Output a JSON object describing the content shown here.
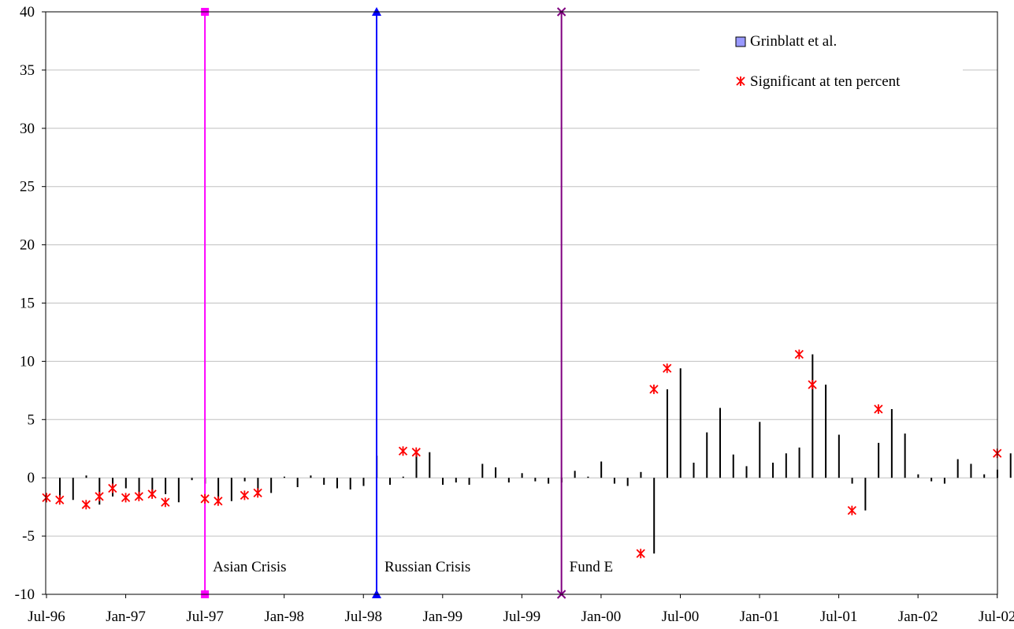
{
  "chart_data": {
    "type": "bar",
    "title": "",
    "xlabel": "",
    "ylabel": "",
    "ylim": [
      -10,
      40
    ],
    "yticks": [
      -10,
      -5,
      0,
      5,
      10,
      15,
      20,
      25,
      30,
      35,
      40
    ],
    "x_tick_labels": [
      "Jul-96",
      "Jan-97",
      "Jul-97",
      "Jan-98",
      "Jul-98",
      "Jan-99",
      "Jul-99",
      "Jan-00",
      "Jul-00",
      "Jan-01",
      "Jul-01",
      "Jan-02",
      "Jul-02"
    ],
    "grid": "horizontal",
    "legend": {
      "placement": "top-right"
    },
    "series": [
      {
        "name": "Grinblatt et al.",
        "color": "#000000",
        "marker": "bar",
        "values": [
          -1.7,
          -1.9,
          0.2,
          -2.3,
          -1.6,
          -0.9,
          -1.7,
          -1.6,
          -1.4,
          -2.1,
          -0.2,
          -0.5,
          -1.8,
          -2.0,
          -0.3,
          -1.5,
          -1.3,
          0.1,
          -0.8,
          0.2,
          -0.6,
          -0.9,
          -1.0,
          -0.7,
          1.9,
          -0.6,
          0.1,
          2.3,
          2.2,
          -0.6,
          -0.4,
          -0.6,
          1.2,
          0.9,
          -0.4,
          0.4,
          -0.3,
          -0.5,
          -0.4,
          0.6,
          0.1,
          1.4,
          -0.5,
          -0.7,
          0.5,
          -6.5,
          7.6,
          9.4,
          1.3,
          3.9,
          6.0,
          2.0,
          1.0,
          4.8,
          1.3,
          2.1,
          2.6,
          10.6,
          8.0,
          3.7,
          -0.5,
          -2.8,
          3.0,
          5.9,
          3.8,
          0.3,
          -0.3,
          -0.5,
          1.6,
          1.2,
          0.3,
          0.7,
          2.1,
          6.4
        ]
      },
      {
        "name": "Significant at ten percent",
        "color": "#ff0000",
        "marker": "asterisk",
        "indices": [
          0,
          1,
          3,
          4,
          5,
          6,
          7,
          8,
          9,
          12,
          13,
          15,
          16,
          27,
          28,
          45,
          46,
          47,
          57,
          58,
          61,
          63,
          72
        ]
      }
    ],
    "events": [
      {
        "label": "Asian Crisis",
        "index": 12,
        "color": "#ff00ff",
        "marker": "square"
      },
      {
        "label": "Russian Crisis",
        "index": 25,
        "color": "#0000ff",
        "marker": "triangle"
      },
      {
        "label": "Fund E",
        "index": 39,
        "color": "#800080",
        "marker": "x"
      }
    ]
  }
}
